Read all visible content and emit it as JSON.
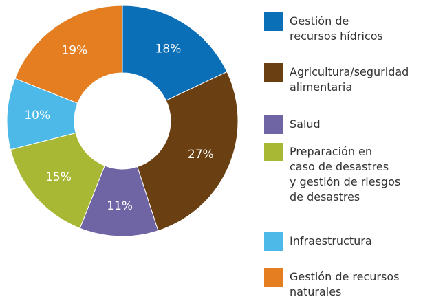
{
  "chart_data": {
    "type": "donut",
    "categories": [
      "Gestión de\nrecursos hídricos",
      "Agricultura/seguridad\nalimentaria",
      "Salud",
      "Preparación en\ncaso de desastres\ny gestión de riesgos\nde desastres",
      "Infraestructura",
      "Gestión de recursos\nnaturales"
    ],
    "values": [
      18,
      27,
      11,
      15,
      10,
      19
    ],
    "value_labels": [
      "18%",
      "27%",
      "11%",
      "15%",
      "10%",
      "19%"
    ],
    "colors": [
      "#0b6fb8",
      "#6a3f12",
      "#6f65a5",
      "#a9b834",
      "#4db9e9",
      "#e47e20"
    ]
  }
}
